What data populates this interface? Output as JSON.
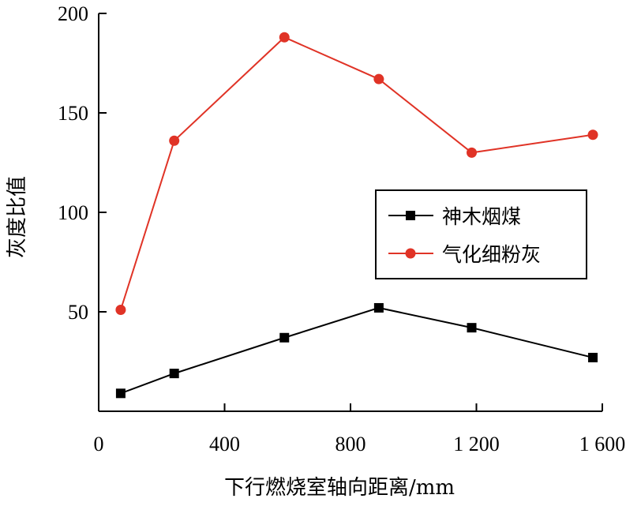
{
  "chart_data": {
    "type": "line",
    "xlabel": "下行燃烧室轴向距离/mm",
    "ylabel": "灰度比值",
    "xlim": [
      0,
      1600
    ],
    "ylim": [
      0,
      200
    ],
    "x_ticks": [
      0,
      400,
      800,
      1200,
      1600
    ],
    "x_tick_labels": [
      "0",
      "400",
      "800",
      "1 200",
      "1 600"
    ],
    "y_ticks": [
      50,
      100,
      150,
      200
    ],
    "y_tick_labels": [
      "50",
      "100",
      "150",
      "200"
    ],
    "grid": false,
    "legend_position": "right",
    "series": [
      {
        "name": "神木烟煤",
        "color": "#000000",
        "marker": "square",
        "x": [
          70,
          240,
          590,
          890,
          1185,
          1570
        ],
        "y": [
          9,
          19,
          37,
          52,
          42,
          27
        ]
      },
      {
        "name": "气化细粉灰",
        "color": "#e03326",
        "marker": "circle",
        "x": [
          70,
          240,
          590,
          890,
          1185,
          1570
        ],
        "y": [
          51,
          136,
          188,
          167,
          130,
          139
        ]
      }
    ]
  }
}
